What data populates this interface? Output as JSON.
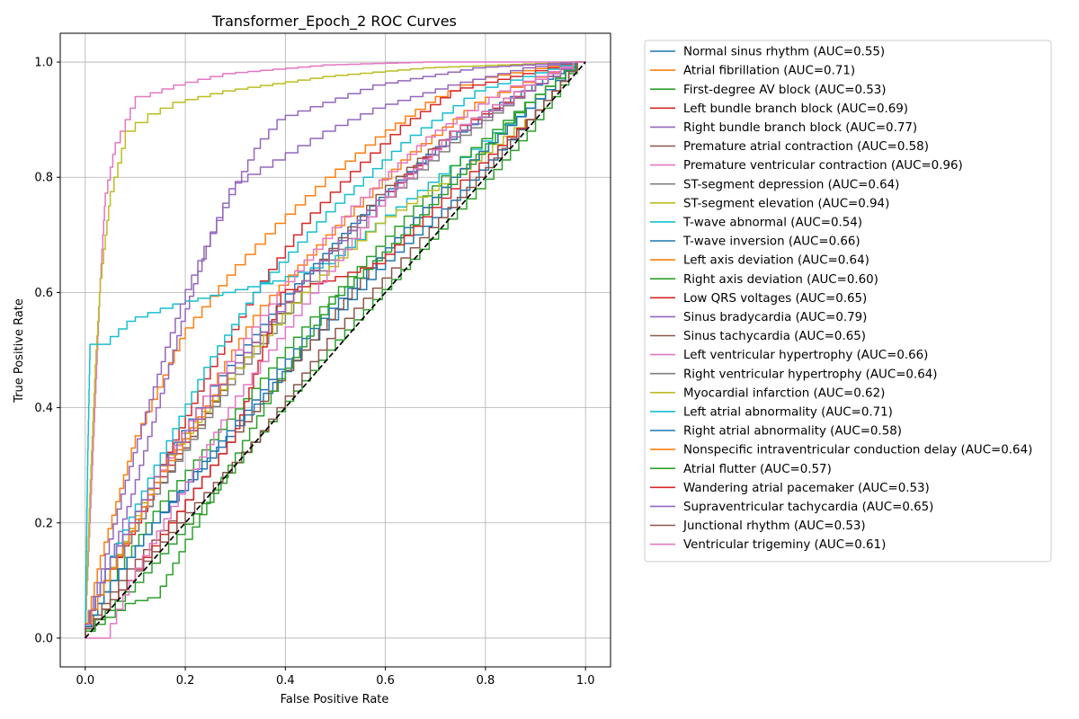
{
  "chart_data": {
    "type": "line",
    "title": "Transformer_Epoch_2 ROC Curves",
    "xlabel": "False Positive Rate",
    "ylabel": "True Positive Rate",
    "xlim": [
      -0.05,
      1.05
    ],
    "ylim": [
      -0.05,
      1.05
    ],
    "xticks": [
      "0.0",
      "0.2",
      "0.4",
      "0.6",
      "0.8",
      "1.0"
    ],
    "yticks": [
      "0.0",
      "0.2",
      "0.4",
      "0.6",
      "0.8",
      "1.0"
    ],
    "grid": true,
    "legend_position": "outside-right",
    "chance_line": {
      "x": [
        0,
        1
      ],
      "y": [
        0,
        1
      ],
      "color": "#000000",
      "style": "dashed"
    },
    "series": [
      {
        "name": "Normal sinus rhythm (AUC=0.55)",
        "color": "#1f77b4",
        "auc": 0.55,
        "x": [
          0,
          0.05,
          0.15,
          0.3,
          0.45,
          0.6,
          0.75,
          0.9,
          1.0
        ],
        "y": [
          0,
          0.08,
          0.2,
          0.35,
          0.5,
          0.64,
          0.76,
          0.9,
          1.0
        ]
      },
      {
        "name": "Atrial fibrillation (AUC=0.71)",
        "color": "#ff7f0e",
        "auc": 0.71,
        "x": [
          0,
          0.03,
          0.1,
          0.2,
          0.3,
          0.4,
          0.5,
          0.6,
          0.7,
          0.8,
          1.0
        ],
        "y": [
          0,
          0.12,
          0.33,
          0.52,
          0.63,
          0.72,
          0.8,
          0.87,
          0.93,
          0.97,
          1.0
        ]
      },
      {
        "name": "First-degree AV block (AUC=0.53)",
        "color": "#2ca02c",
        "auc": 0.53,
        "x": [
          0,
          0.1,
          0.2,
          0.35,
          0.5,
          0.65,
          0.8,
          0.9,
          1.0
        ],
        "y": [
          0,
          0.08,
          0.18,
          0.34,
          0.5,
          0.64,
          0.78,
          0.88,
          1.0
        ]
      },
      {
        "name": "Left bundle branch block (AUC=0.69)",
        "color": "#d62728",
        "auc": 0.69,
        "x": [
          0,
          0.05,
          0.15,
          0.25,
          0.35,
          0.45,
          0.55,
          0.65,
          0.75,
          1.0
        ],
        "y": [
          0,
          0.1,
          0.28,
          0.45,
          0.6,
          0.72,
          0.81,
          0.89,
          0.95,
          1.0
        ]
      },
      {
        "name": "Right bundle branch block (AUC=0.77)",
        "color": "#9467bd",
        "auc": 0.77,
        "x": [
          0,
          0.05,
          0.1,
          0.15,
          0.2,
          0.25,
          0.3,
          0.4,
          0.5,
          0.6,
          0.75,
          0.9,
          1.0
        ],
        "y": [
          0,
          0.12,
          0.25,
          0.4,
          0.55,
          0.68,
          0.78,
          0.83,
          0.88,
          0.92,
          0.96,
          0.99,
          1.0
        ]
      },
      {
        "name": "Premature atrial contraction (AUC=0.58)",
        "color": "#8c564b",
        "auc": 0.58,
        "x": [
          0,
          0.1,
          0.2,
          0.3,
          0.45,
          0.6,
          0.75,
          0.9,
          1.0
        ],
        "y": [
          0,
          0.12,
          0.22,
          0.34,
          0.5,
          0.66,
          0.8,
          0.92,
          1.0
        ]
      },
      {
        "name": "Premature ventricular contraction (AUC=0.96)",
        "color": "#e377c2",
        "auc": 0.96,
        "x": [
          0,
          0.01,
          0.02,
          0.03,
          0.04,
          0.06,
          0.08,
          0.1,
          0.13,
          0.2,
          0.3,
          0.5,
          0.7,
          1.0
        ],
        "y": [
          0,
          0.2,
          0.4,
          0.6,
          0.75,
          0.84,
          0.88,
          0.92,
          0.94,
          0.96,
          0.98,
          0.995,
          1.0,
          1.0
        ]
      },
      {
        "name": "ST-segment depression (AUC=0.64)",
        "color": "#7f7f7f",
        "auc": 0.64,
        "x": [
          0,
          0.05,
          0.15,
          0.3,
          0.45,
          0.6,
          0.75,
          0.9,
          1.0
        ],
        "y": [
          0,
          0.1,
          0.25,
          0.45,
          0.62,
          0.76,
          0.87,
          0.95,
          1.0
        ]
      },
      {
        "name": "ST-segment elevation (AUC=0.94)",
        "color": "#bcbd22",
        "auc": 0.94,
        "x": [
          0,
          0.01,
          0.02,
          0.03,
          0.05,
          0.08,
          0.1,
          0.15,
          0.2,
          0.3,
          0.5,
          0.7,
          1.0
        ],
        "y": [
          0,
          0.25,
          0.45,
          0.6,
          0.75,
          0.85,
          0.88,
          0.91,
          0.93,
          0.95,
          0.975,
          0.99,
          1.0
        ]
      },
      {
        "name": "T-wave abnormal (AUC=0.54)",
        "color": "#17becf",
        "auc": 0.54,
        "x": [
          0,
          0.005,
          0.01,
          0.05,
          0.1,
          0.2,
          0.3,
          0.4,
          0.5,
          0.6,
          0.75,
          0.9,
          1.0
        ],
        "y": [
          0,
          0.3,
          0.51,
          0.51,
          0.55,
          0.58,
          0.6,
          0.62,
          0.65,
          0.72,
          0.82,
          0.92,
          1.0
        ]
      },
      {
        "name": "T-wave inversion (AUC=0.66)",
        "color": "#1f77b4",
        "auc": 0.66,
        "x": [
          0,
          0.05,
          0.15,
          0.25,
          0.4,
          0.55,
          0.7,
          0.85,
          1.0
        ],
        "y": [
          0,
          0.12,
          0.28,
          0.42,
          0.58,
          0.72,
          0.84,
          0.93,
          1.0
        ]
      },
      {
        "name": "Left axis deviation (AUC=0.64)",
        "color": "#ff7f0e",
        "auc": 0.64,
        "x": [
          0,
          0.05,
          0.15,
          0.25,
          0.35,
          0.5,
          0.65,
          0.8,
          1.0
        ],
        "y": [
          0,
          0.1,
          0.27,
          0.42,
          0.56,
          0.7,
          0.83,
          0.93,
          1.0
        ]
      },
      {
        "name": "Right axis deviation (AUC=0.60)",
        "color": "#2ca02c",
        "auc": 0.6,
        "x": [
          0,
          0.05,
          0.15,
          0.3,
          0.45,
          0.6,
          0.75,
          0.9,
          1.0
        ],
        "y": [
          0,
          0.08,
          0.22,
          0.38,
          0.54,
          0.68,
          0.82,
          0.93,
          1.0
        ]
      },
      {
        "name": "Low QRS voltages (AUC=0.65)",
        "color": "#d62728",
        "auc": 0.65,
        "x": [
          0,
          0.05,
          0.15,
          0.3,
          0.45,
          0.6,
          0.75,
          0.9,
          1.0
        ],
        "y": [
          0,
          0.1,
          0.26,
          0.46,
          0.62,
          0.76,
          0.88,
          0.95,
          1.0
        ]
      },
      {
        "name": "Sinus bradycardia (AUC=0.79)",
        "color": "#9467bd",
        "auc": 0.79,
        "x": [
          0,
          0.04,
          0.08,
          0.12,
          0.16,
          0.2,
          0.25,
          0.3,
          0.35,
          0.4,
          0.5,
          0.6,
          0.8,
          1.0
        ],
        "y": [
          0,
          0.12,
          0.25,
          0.37,
          0.48,
          0.58,
          0.68,
          0.77,
          0.85,
          0.9,
          0.93,
          0.96,
          0.99,
          1.0
        ]
      },
      {
        "name": "Sinus tachycardia (AUC=0.65)",
        "color": "#8c564b",
        "auc": 0.65,
        "x": [
          0,
          0.05,
          0.15,
          0.3,
          0.45,
          0.6,
          0.75,
          0.9,
          1.0
        ],
        "y": [
          0,
          0.1,
          0.25,
          0.45,
          0.62,
          0.77,
          0.88,
          0.96,
          1.0
        ]
      },
      {
        "name": "Left ventricular hypertrophy (AUC=0.66)",
        "color": "#e377c2",
        "auc": 0.66,
        "x": [
          0,
          0.05,
          0.15,
          0.25,
          0.4,
          0.55,
          0.7,
          0.85,
          1.0
        ],
        "y": [
          0,
          0.1,
          0.27,
          0.42,
          0.6,
          0.75,
          0.87,
          0.95,
          1.0
        ]
      },
      {
        "name": "Right ventricular hypertrophy (AUC=0.64)",
        "color": "#7f7f7f",
        "auc": 0.64,
        "x": [
          0,
          0.05,
          0.15,
          0.3,
          0.45,
          0.6,
          0.75,
          0.9,
          1.0
        ],
        "y": [
          0,
          0.1,
          0.25,
          0.44,
          0.6,
          0.75,
          0.86,
          0.95,
          1.0
        ]
      },
      {
        "name": "Myocardial infarction (AUC=0.62)",
        "color": "#bcbd22",
        "auc": 0.62,
        "x": [
          0,
          0.05,
          0.15,
          0.3,
          0.45,
          0.6,
          0.75,
          0.9,
          1.0
        ],
        "y": [
          0,
          0.1,
          0.28,
          0.45,
          0.6,
          0.72,
          0.8,
          0.9,
          1.0
        ]
      },
      {
        "name": "Left atrial abnormality (AUC=0.71)",
        "color": "#17becf",
        "auc": 0.71,
        "x": [
          0,
          0.05,
          0.15,
          0.25,
          0.35,
          0.5,
          0.65,
          0.8,
          1.0
        ],
        "y": [
          0,
          0.12,
          0.3,
          0.47,
          0.6,
          0.74,
          0.86,
          0.95,
          1.0
        ]
      },
      {
        "name": "Right atrial abnormality (AUC=0.58)",
        "color": "#1f77b4",
        "auc": 0.58,
        "x": [
          0,
          0.05,
          0.15,
          0.3,
          0.45,
          0.6,
          0.75,
          0.9,
          1.0
        ],
        "y": [
          0,
          0.08,
          0.2,
          0.36,
          0.52,
          0.66,
          0.8,
          0.92,
          1.0
        ]
      },
      {
        "name": "Nonspecific intraventricular conduction delay (AUC=0.64)",
        "color": "#ff7f0e",
        "auc": 0.64,
        "x": [
          0,
          0.05,
          0.15,
          0.3,
          0.45,
          0.6,
          0.75,
          0.9,
          1.0
        ],
        "y": [
          0,
          0.1,
          0.27,
          0.46,
          0.62,
          0.76,
          0.87,
          0.95,
          1.0
        ]
      },
      {
        "name": "Atrial flutter (AUC=0.57)",
        "color": "#2ca02c",
        "auc": 0.57,
        "x": [
          0,
          0.1,
          0.15,
          0.2,
          0.3,
          0.4,
          0.5,
          0.65,
          0.8,
          0.9,
          1.0
        ],
        "y": [
          0,
          0.06,
          0.07,
          0.15,
          0.3,
          0.45,
          0.58,
          0.7,
          0.84,
          0.93,
          1.0
        ]
      },
      {
        "name": "Wandering atrial pacemaker (AUC=0.53)",
        "color": "#d62728",
        "auc": 0.53,
        "x": [
          0,
          0.1,
          0.2,
          0.3,
          0.4,
          0.5,
          0.6,
          0.75,
          0.9,
          1.0
        ],
        "y": [
          0,
          0.1,
          0.22,
          0.34,
          0.6,
          0.62,
          0.65,
          0.78,
          0.9,
          1.0
        ]
      },
      {
        "name": "Supraventricular tachycardia (AUC=0.65)",
        "color": "#9467bd",
        "auc": 0.65,
        "x": [
          0,
          0.05,
          0.15,
          0.3,
          0.45,
          0.6,
          0.75,
          0.9,
          1.0
        ],
        "y": [
          0,
          0.12,
          0.28,
          0.46,
          0.62,
          0.76,
          0.87,
          0.95,
          1.0
        ]
      },
      {
        "name": "Junctional rhythm (AUC=0.53)",
        "color": "#8c564b",
        "auc": 0.53,
        "x": [
          0,
          0.1,
          0.2,
          0.35,
          0.5,
          0.65,
          0.8,
          0.9,
          1.0
        ],
        "y": [
          0,
          0.1,
          0.2,
          0.34,
          0.52,
          0.66,
          0.8,
          0.9,
          1.0
        ]
      },
      {
        "name": "Ventricular trigeminy (AUC=0.61)",
        "color": "#e377c2",
        "auc": 0.61,
        "x": [
          0,
          0.02,
          0.05,
          0.1,
          0.2,
          0.3,
          0.45,
          0.6,
          0.75,
          0.9,
          1.0
        ],
        "y": [
          0,
          0.0,
          0.0,
          0.1,
          0.25,
          0.4,
          0.58,
          0.75,
          0.88,
          0.96,
          1.0
        ]
      }
    ]
  }
}
